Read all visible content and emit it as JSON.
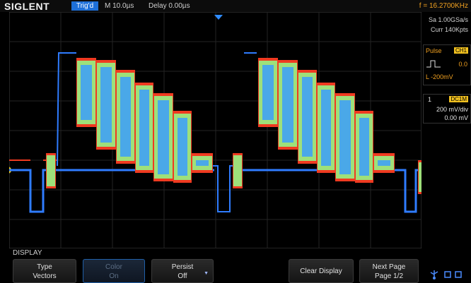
{
  "header": {
    "brand": "SIGLENT",
    "trigger_state": "Trig'd",
    "timebase": "M 10.0µs",
    "delay": "Delay 0.00µs",
    "frequency": "f = 16.2700KHz"
  },
  "acquisition": {
    "sample_rate": "Sa 1.00GSa/s",
    "memory_depth": "Curr 140Kpts"
  },
  "trigger_panel": {
    "type": "Pulse",
    "channel": "CH1",
    "value": "0.0",
    "level": "L -200mV"
  },
  "channel_panel": {
    "number": "1",
    "coupling": "DC1M",
    "scale": "200 mV/div",
    "offset": "0.00 mV"
  },
  "menu": {
    "title": "DISPLAY",
    "softkeys": [
      {
        "line1": "Type",
        "line2": "Vectors"
      },
      {
        "line1": "Color",
        "line2": "On"
      },
      {
        "line1": "Persist",
        "line2": "Off"
      },
      {
        "line1": "Clear Display",
        "line2": ""
      },
      {
        "line1": "Next Page",
        "line2": "Page 1/2"
      }
    ]
  },
  "colors": {
    "trace_outer": "#f03a20",
    "trace_mid": "#9ee07a",
    "trace_inner": "#4aa8e8",
    "baseline": "#2f7cff",
    "accent": "#1d6fd8",
    "trigger_label": "#f0c020"
  }
}
